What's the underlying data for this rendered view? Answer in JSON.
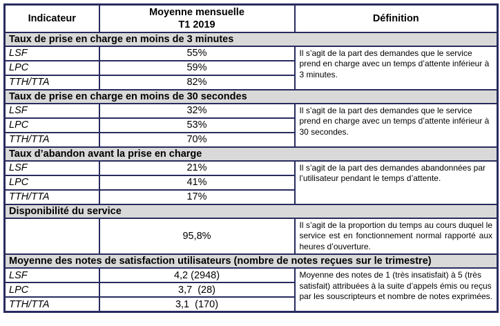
{
  "colors": {
    "border": "#272b5e",
    "section-bg": "#d9d9d9"
  },
  "table": {
    "headers": {
      "indicator": "Indicateur",
      "average_line1": "Moyenne mensuelle",
      "average_line2": "T1 2019",
      "definition": "Définition"
    },
    "sections": [
      {
        "title": "Taux de prise en charge en moins de 3 minutes",
        "rows": [
          {
            "label": "LSF",
            "value": "55%"
          },
          {
            "label": "LPC",
            "value": "59%"
          },
          {
            "label": "TTH/TTA",
            "value": "82%"
          }
        ],
        "definition": "Il s’agit de la part des demandes que le service prend en charge avec un temps d’attente inférieur à 3 minutes."
      },
      {
        "title": "Taux de prise en charge en moins de 30 secondes",
        "rows": [
          {
            "label": "LSF",
            "value": "32%"
          },
          {
            "label": "LPC",
            "value": "53%"
          },
          {
            "label": "TTH/TTA",
            "value": "70%"
          }
        ],
        "definition": "Il s’agit de la part des demandes que le service prend en charge avec un temps d’attente inférieur à 30 secondes."
      },
      {
        "title": "Taux d’abandon avant la prise en charge",
        "rows": [
          {
            "label": "LSF",
            "value": "21%"
          },
          {
            "label": "LPC",
            "value": "41%"
          },
          {
            "label": "TTH/TTA",
            "value": "17%"
          }
        ],
        "definition": "Il s’agit de la part des demandes abandonnées par l’utilisateur pendant le  temps d’attente."
      },
      {
        "title": "Disponibilité du service",
        "rows": [
          {
            "label": "",
            "value": "95,8%"
          }
        ],
        "definition": "Il s’agit de la proportion du temps au cours duquel le service est en fonctionnement normal rapporté aux  heures d’ouverture."
      },
      {
        "title": "Moyenne des notes de satisfaction utilisateurs (nombre de notes reçues sur le trimestre)",
        "rows": [
          {
            "label": "LSF",
            "value": "4,2 (2948)"
          },
          {
            "label": "LPC",
            "value": "3,7  (28)"
          },
          {
            "label": "TTH/TTA",
            "value": "3,1  (170)"
          }
        ],
        "definition": "Moyenne des notes de 1 (très insatisfait) à 5 (très satisfait) attribuées à la suite d’appels émis ou reçus par les souscripteurs et nombre de notes exprimées."
      }
    ]
  }
}
